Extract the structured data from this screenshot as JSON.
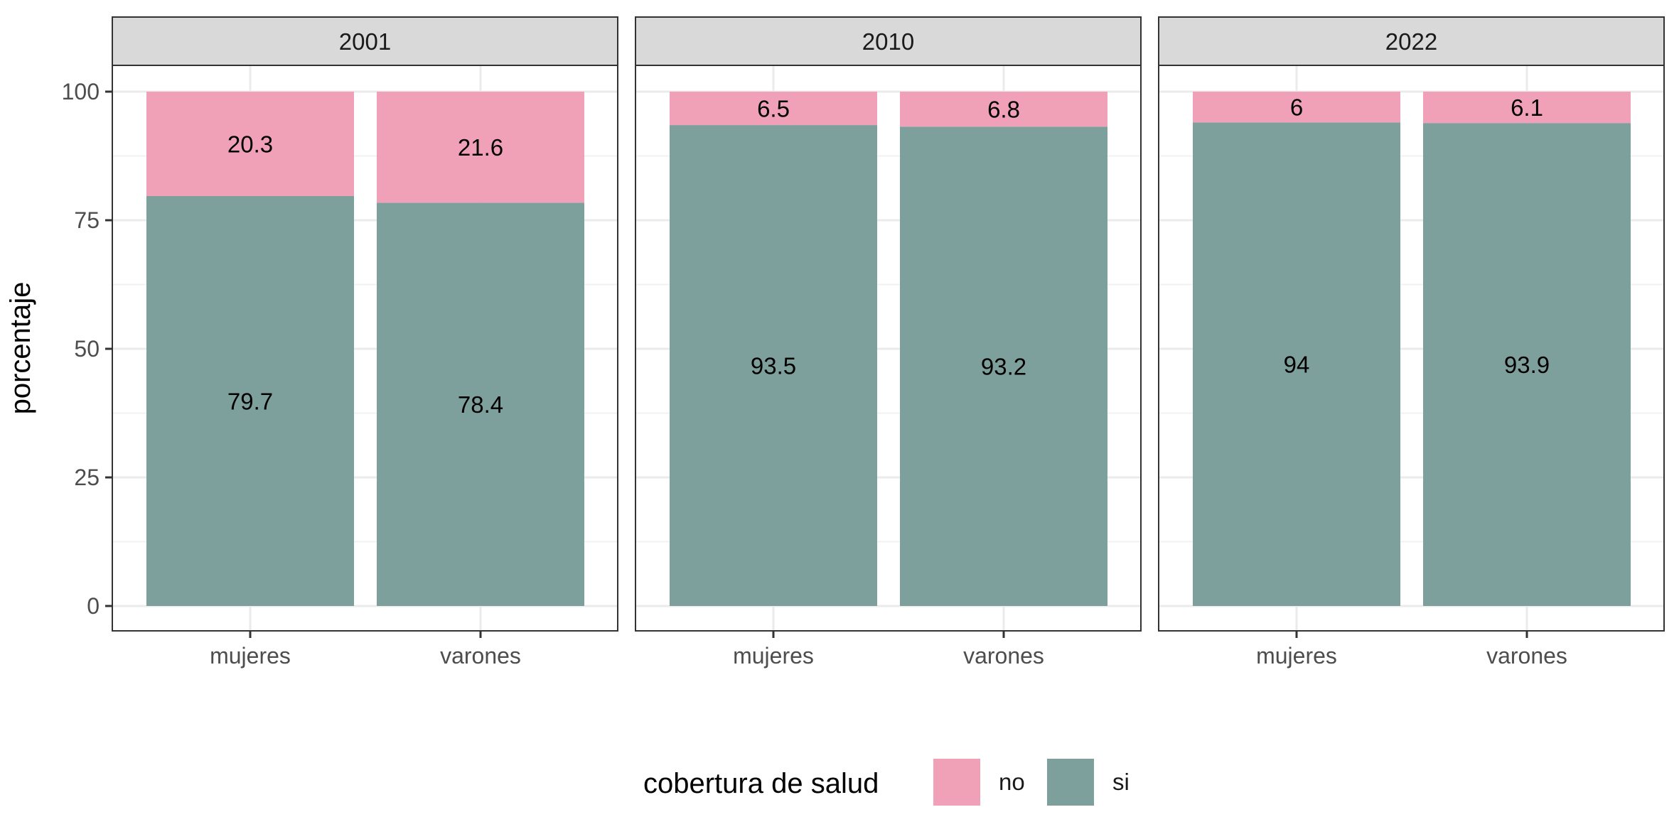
{
  "chart_data": {
    "type": "bar",
    "stacked": true,
    "facet_by": "year",
    "facets": [
      "2001",
      "2010",
      "2022"
    ],
    "categories": [
      "mujeres",
      "varones"
    ],
    "series": [
      {
        "name": "no",
        "color": "#f0a1b7",
        "values": [
          [
            20.3,
            21.6
          ],
          [
            6.5,
            6.8
          ],
          [
            6,
            6.1
          ]
        ]
      },
      {
        "name": "si",
        "color": "#7ea09c",
        "values": [
          [
            79.7,
            78.4
          ],
          [
            93.5,
            93.2
          ],
          [
            94,
            93.9
          ]
        ]
      }
    ],
    "ylabel": "porcentaje",
    "xlabel": "",
    "ylim": [
      -5,
      110
    ],
    "yticks": [
      0,
      25,
      50,
      75,
      100
    ],
    "grid": true,
    "legend": {
      "title": "cobertura de salud",
      "position": "bottom",
      "entries": [
        "no",
        "si"
      ]
    }
  }
}
